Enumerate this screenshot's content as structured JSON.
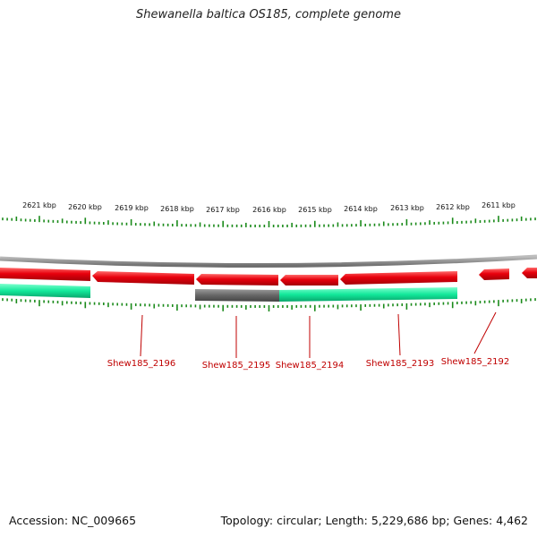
{
  "title": "Shewanella baltica OS185, complete genome",
  "footer": {
    "accession": "Accession: NC_009665",
    "summary": "Topology: circular; Length: 5,229,686 bp; Genes: 4,462"
  },
  "scale": {
    "major_labels": [
      "2621 kbp",
      "2620 kbp",
      "2619 kbp",
      "2618 kbp",
      "2617 kbp",
      "2616 kbp",
      "2615 kbp",
      "2614 kbp",
      "2613 kbp",
      "2612 kbp",
      "2611 kbp"
    ]
  },
  "colors": {
    "gene_red": "#e8000c",
    "gene_green": "#12e89a",
    "gene_gray": "#666666",
    "backbone": "#8a8a8a",
    "tick": "#1a8a1a",
    "label": "#c00000"
  },
  "genes": [
    {
      "label": "Shew185_2196"
    },
    {
      "label": "Shew185_2195"
    },
    {
      "label": "Shew185_2194"
    },
    {
      "label": "Shew185_2193"
    },
    {
      "label": "Shew185_2192"
    }
  ]
}
